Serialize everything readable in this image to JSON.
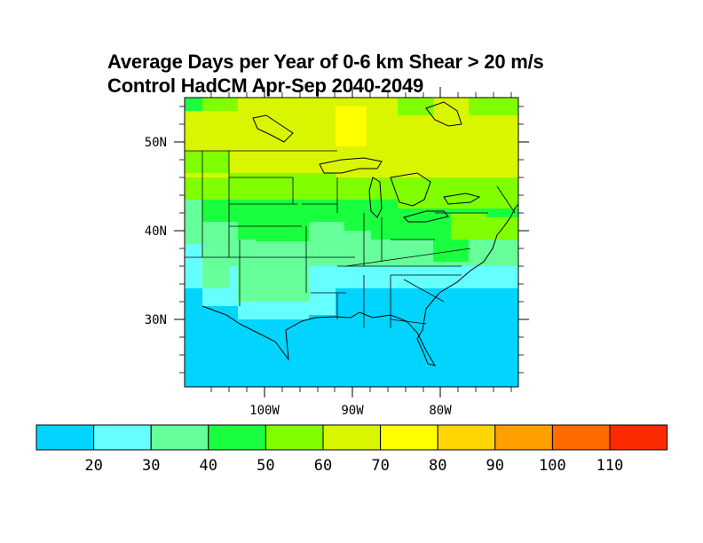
{
  "title": {
    "line1": "Average Days per Year of 0-6 km Shear > 20 m/s",
    "line2": "Control HadCM Apr-Sep 2040-2049"
  },
  "map": {
    "lat_labels": [
      "50N",
      "40N",
      "30N"
    ],
    "lon_labels": [
      "100W",
      "90W",
      "80W"
    ],
    "field_description": "gridded days/year values over the eastern United States"
  },
  "colorbar": {
    "colors": [
      "#00d4ff",
      "#66ffff",
      "#66ff99",
      "#19ff40",
      "#80ff00",
      "#d9f500",
      "#ffff00",
      "#ffd500",
      "#ff9f00",
      "#ff6a00",
      "#ff2b00"
    ],
    "labels": [
      "20",
      "30",
      "40",
      "50",
      "60",
      "70",
      "80",
      "90",
      "100",
      "110"
    ]
  }
}
